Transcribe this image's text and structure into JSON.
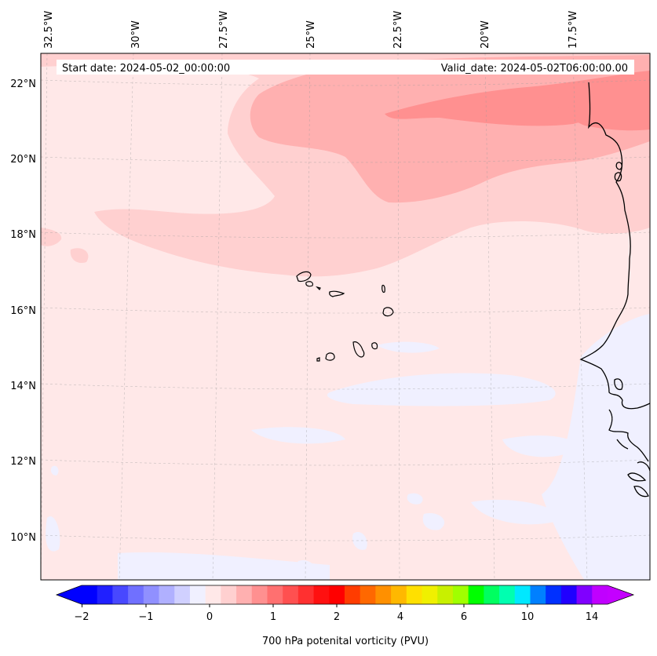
{
  "map": {
    "start_date_label": "Start date: 2024-05-02_00:00:00",
    "valid_date_label": "Valid_date: 2024-05-02T06:00:00.00",
    "lon_labels": [
      "32.5°W",
      "30°W",
      "27.5°W",
      "25°W",
      "22.5°W",
      "20°W",
      "17.5°W"
    ],
    "lat_labels": [
      "22°N",
      "20°N",
      "18°N",
      "16°N",
      "14°N",
      "12°N",
      "10°N"
    ],
    "extent": {
      "lon_min": -32.6,
      "lon_max": -15.5,
      "lat_min": 8.9,
      "lat_max": 22.8
    },
    "features": [
      "Cape Verde islands",
      "West African coastline"
    ]
  },
  "colorbar": {
    "label": "700 hPa potenital vorticity (PVU)",
    "tick_labels": [
      "−2",
      "−1",
      "0",
      "1",
      "2",
      "4",
      "6",
      "10",
      "14"
    ],
    "colors": [
      "#0000ff",
      "#2020ff",
      "#4848ff",
      "#7070ff",
      "#9090ff",
      "#b0b0ff",
      "#d0d0ff",
      "#f0f0ff",
      "#ffe8e8",
      "#ffd0d0",
      "#ffb0b0",
      "#ff9090",
      "#ff7070",
      "#ff5050",
      "#ff3030",
      "#ff1010",
      "#ff0000",
      "#ff3c00",
      "#ff6800",
      "#ff9000",
      "#ffb800",
      "#ffe000",
      "#f0f000",
      "#c8f000",
      "#a0ff00",
      "#00ff00",
      "#00ff60",
      "#00ffb0",
      "#00e8ff",
      "#0080ff",
      "#0030ff",
      "#2000ff",
      "#8000ff",
      "#c000ff"
    ],
    "extend_low_color": "#0000ff",
    "extend_high_color": "#c400ff"
  }
}
